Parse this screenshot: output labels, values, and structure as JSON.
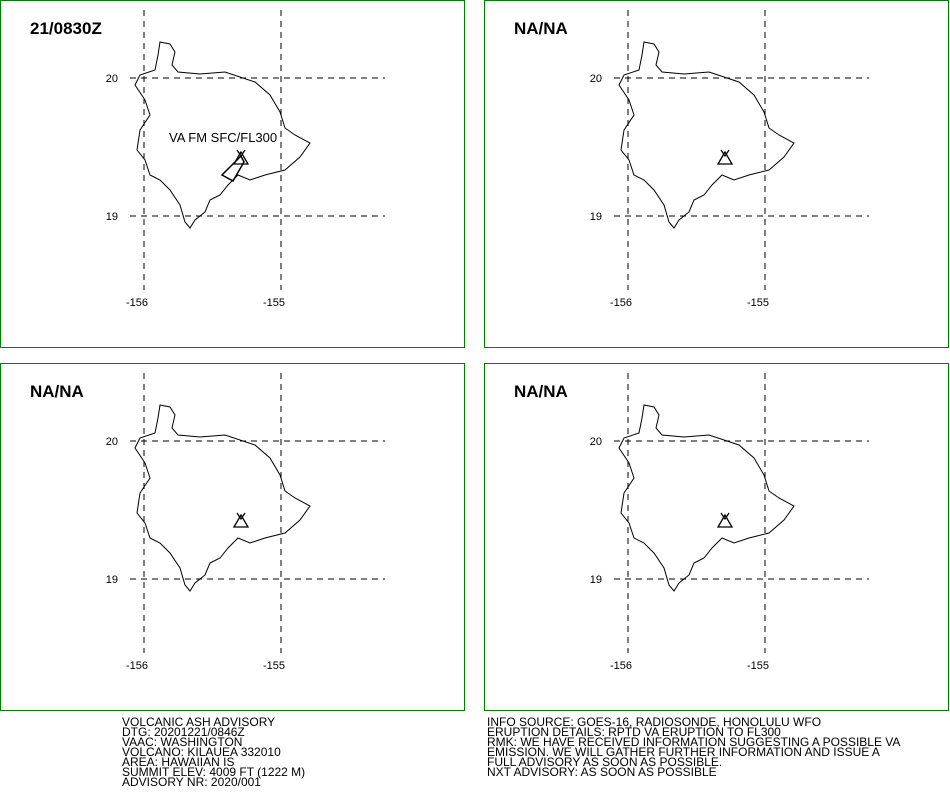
{
  "panels": [
    {
      "time_label": "21/0830Z",
      "annotation": "VA FM SFC/FL300",
      "ash_area": true
    },
    {
      "time_label": "NA/NA"
    },
    {
      "time_label": "NA/NA"
    },
    {
      "time_label": "NA/NA"
    }
  ],
  "lat_labels": [
    "20",
    "19"
  ],
  "lon_labels": [
    "-156",
    "-155"
  ],
  "advisory_left": [
    "VOLCANIC ASH ADVISORY",
    "DTG: 20201221/0846Z",
    "VAAC: WASHINGTON",
    "VOLCANO: KILAUEA 332010",
    "AREA: HAWAIIAN IS",
    "SUMMIT ELEV: 4009 FT (1222 M)",
    "ADVISORY NR: 2020/001"
  ],
  "advisory_right": [
    "INFO SOURCE: GOES-16, RADIOSONDE, HONOLULU WFO",
    "ERUPTION DETAILS: RPTD VA ERUPTION TO FL300",
    "RMK: WE HAVE RECEIVED INFORMATION SUGGESTING A POSSIBLE VA",
    "EMISSION. WE WILL GATHER FURTHER INFORMATION AND ISSUE A",
    "FULL ADVISORY AS SOON AS POSSIBLE.",
    "NXT ADVISORY: AS SOON AS POSSIBLE"
  ]
}
